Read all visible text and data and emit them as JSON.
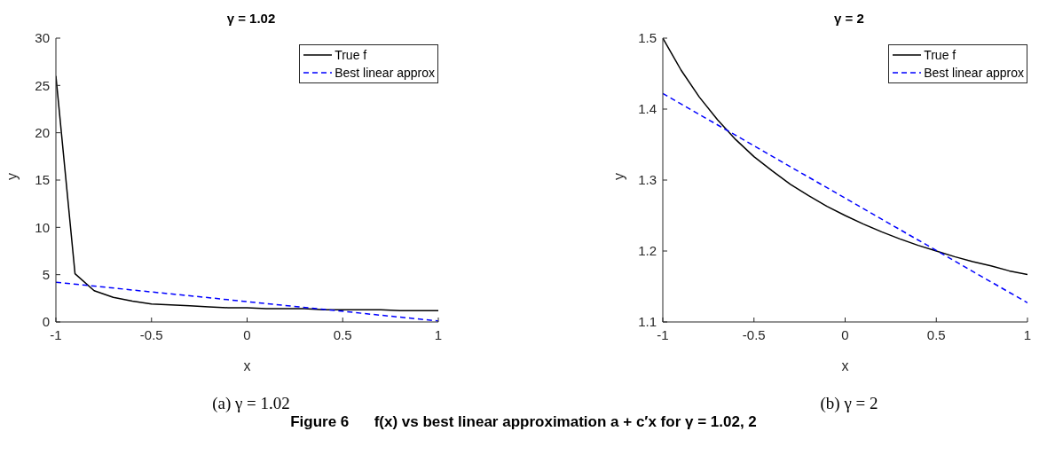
{
  "chart_data": [
    {
      "type": "line",
      "title": "γ = 1.02",
      "xlabel": "x",
      "ylabel": "y",
      "xlim": [
        -1,
        1
      ],
      "xticks": [
        -1,
        -0.5,
        0,
        0.5,
        1
      ],
      "ylim": [
        0,
        30
      ],
      "yticks": [
        0,
        5,
        10,
        15,
        20,
        25,
        30
      ],
      "grid": false,
      "legend": "top right",
      "marker": "none",
      "series": [
        {
          "name": "True f",
          "color": "#000000",
          "line_style": "solid",
          "x": [
            -1,
            -0.9,
            -0.8,
            -0.7,
            -0.6,
            -0.5,
            -0.4,
            -0.3,
            -0.2,
            -0.1,
            0,
            0.1,
            0.2,
            0.3,
            0.4,
            0.5,
            0.6,
            0.7,
            0.8,
            0.9,
            1
          ],
          "values": [
            26,
            5.1,
            3.3,
            2.6,
            2.2,
            1.9,
            1.8,
            1.7,
            1.6,
            1.5,
            1.5,
            1.4,
            1.4,
            1.4,
            1.3,
            1.3,
            1.3,
            1.3,
            1.2,
            1.2,
            1.2
          ]
        },
        {
          "name": "Best linear approx",
          "color": "#0000ff",
          "line_style": "dashed",
          "x": [
            -1,
            1
          ],
          "values": [
            4.2,
            0.1
          ]
        }
      ],
      "annotations": [
        "(a) γ = 1.02",
        "Figure 6      f(x) vs best linear approximation a + c′x for γ = 1.02, 2"
      ]
    },
    {
      "type": "line",
      "title": "γ = 2",
      "xlabel": "x",
      "ylabel": "y",
      "xlim": [
        -1,
        1
      ],
      "xticks": [
        -1,
        -0.5,
        0,
        0.5,
        1
      ],
      "ylim": [
        1.1,
        1.5
      ],
      "yticks": [
        1.1,
        1.2,
        1.3,
        1.4,
        1.5
      ],
      "grid": false,
      "legend": "top right",
      "marker": "none",
      "series": [
        {
          "name": "True f",
          "color": "#000000",
          "line_style": "solid",
          "x": [
            -1,
            -0.9,
            -0.8,
            -0.7,
            -0.6,
            -0.5,
            -0.4,
            -0.3,
            -0.2,
            -0.1,
            0,
            0.1,
            0.2,
            0.3,
            0.4,
            0.5,
            0.6,
            0.7,
            0.8,
            0.9,
            1
          ],
          "values": [
            1.5,
            1.455,
            1.417,
            1.385,
            1.357,
            1.333,
            1.313,
            1.294,
            1.278,
            1.263,
            1.25,
            1.238,
            1.227,
            1.217,
            1.208,
            1.2,
            1.192,
            1.185,
            1.179,
            1.172,
            1.167
          ]
        },
        {
          "name": "Best linear approx",
          "color": "#0000ff",
          "line_style": "dashed",
          "x": [
            -1,
            1
          ],
          "values": [
            1.422,
            1.127
          ]
        }
      ],
      "annotations": [
        "(b) γ = 2"
      ]
    }
  ]
}
